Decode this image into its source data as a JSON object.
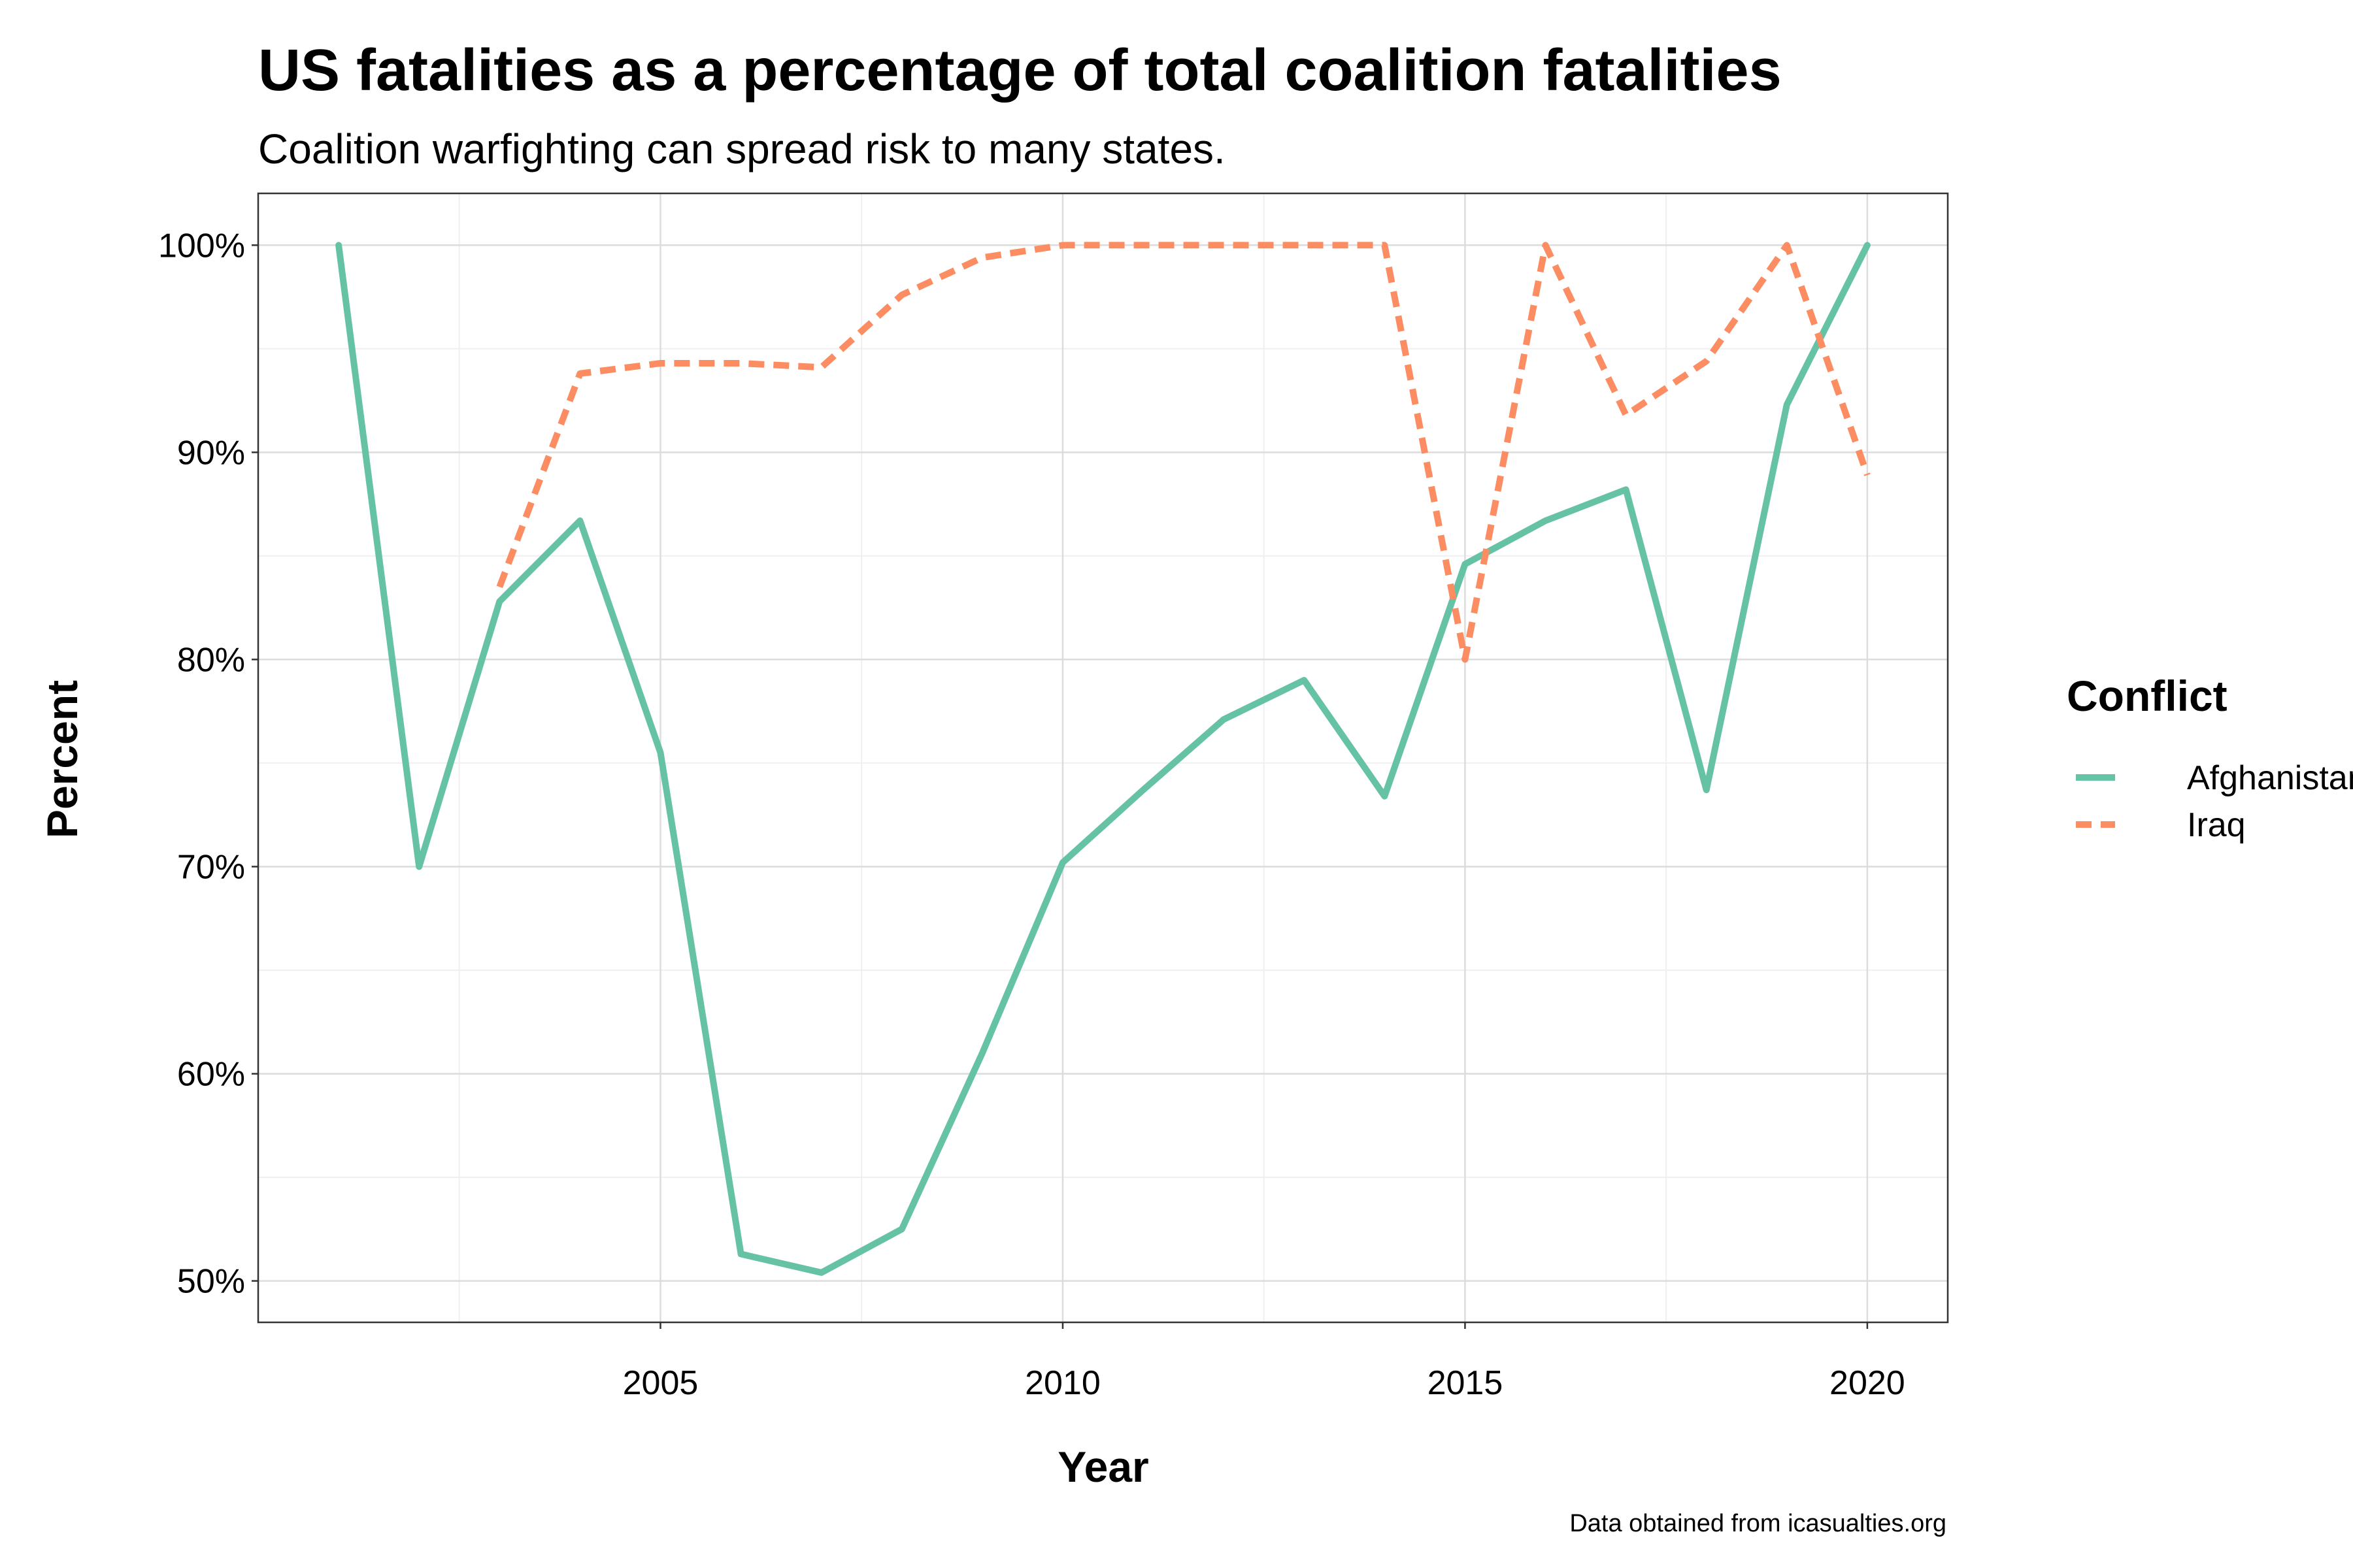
{
  "chart_data": {
    "type": "line",
    "title": "US fatalities as a percentage of total coalition fatalities",
    "subtitle": "Coalition warfighting can spread risk to many states.",
    "xlabel": "Year",
    "ylabel": "Percent",
    "caption": "Data obtained from icasualties.org",
    "xlim": [
      2000.0,
      2021.0
    ],
    "ylim": [
      48,
      102.5
    ],
    "x_ticks": [
      2005,
      2010,
      2015,
      2020
    ],
    "x_tick_labels": [
      "2005",
      "2010",
      "2015",
      "2020"
    ],
    "y_ticks": [
      50,
      60,
      70,
      80,
      90,
      100
    ],
    "y_tick_labels": [
      "50%",
      "60%",
      "70%",
      "80%",
      "90%",
      "100%"
    ],
    "grid": true,
    "legend": {
      "title": "Conflict",
      "position": "right"
    },
    "series": [
      {
        "name": "Afghanistan",
        "color": "#66c2a5",
        "dash": "solid",
        "x": [
          2001,
          2002,
          2003,
          2004,
          2005,
          2006,
          2007,
          2008,
          2009,
          2010,
          2011,
          2012,
          2013,
          2014,
          2015,
          2016,
          2017,
          2018,
          2019,
          2020
        ],
        "y": [
          100.0,
          70.0,
          82.8,
          86.7,
          75.5,
          51.3,
          50.4,
          52.5,
          61.0,
          70.2,
          73.7,
          77.1,
          79.0,
          73.4,
          84.6,
          86.7,
          88.2,
          73.7,
          92.3,
          100.0
        ]
      },
      {
        "name": "Iraq",
        "color": "#fc8d62",
        "dash": "dashed",
        "x": [
          2003,
          2004,
          2005,
          2006,
          2007,
          2008,
          2009,
          2010,
          2011,
          2012,
          2013,
          2014,
          2015,
          2016,
          2017,
          2018,
          2019,
          2020
        ],
        "y": [
          83.5,
          93.8,
          94.3,
          94.3,
          94.1,
          97.6,
          99.4,
          100.0,
          100.0,
          100.0,
          100.0,
          100.0,
          80.0,
          100.0,
          91.8,
          94.4,
          100.0,
          88.9
        ]
      }
    ]
  }
}
